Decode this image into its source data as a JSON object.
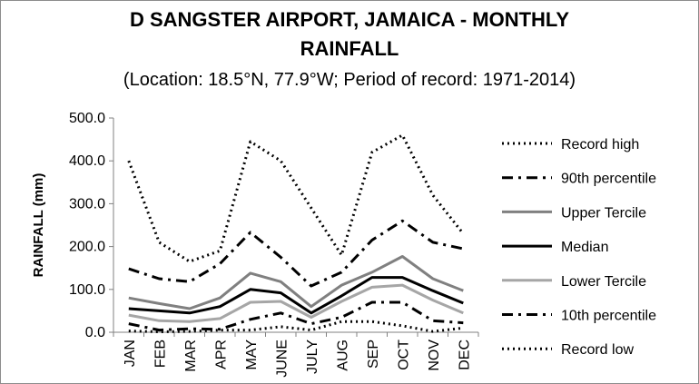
{
  "chart_data": {
    "type": "line",
    "title_line1": "D SANGSTER AIRPORT, JAMAICA - MONTHLY",
    "title_line2": "RAINFALL",
    "subtitle": "(Location: 18.5°N, 77.9°W; Period of record: 1971-2014)",
    "ylabel": "RAINFALL (mm)",
    "xlabel": "",
    "categories": [
      "JAN",
      "FEB",
      "MAR",
      "APR",
      "MAY",
      "JUNE",
      "JULY",
      "AUG",
      "SEP",
      "OCT",
      "NOV",
      "DEC"
    ],
    "ylim": [
      0,
      500
    ],
    "y_ticks": [
      "0.0",
      "100.0",
      "200.0",
      "300.0",
      "400.0",
      "500.0"
    ],
    "grid": false,
    "legend_position": "right",
    "series": [
      {
        "name": "Record high",
        "style": "dotted",
        "color": "#000000",
        "values": [
          400,
          210,
          165,
          190,
          445,
          400,
          290,
          180,
          420,
          460,
          320,
          230
        ]
      },
      {
        "name": "90th percentile",
        "style": "dashdot",
        "color": "#000000",
        "values": [
          148,
          125,
          118,
          160,
          233,
          175,
          108,
          140,
          215,
          260,
          210,
          195
        ]
      },
      {
        "name": "Upper Tercile",
        "style": "solid",
        "color": "#808080",
        "values": [
          80,
          67,
          55,
          80,
          138,
          118,
          60,
          110,
          140,
          177,
          125,
          97
        ]
      },
      {
        "name": "Median",
        "style": "solid",
        "color": "#000000",
        "values": [
          55,
          50,
          45,
          60,
          100,
          92,
          45,
          85,
          128,
          128,
          97,
          68
        ]
      },
      {
        "name": "Lower Tercile",
        "style": "solid",
        "color": "#a6a6a6",
        "values": [
          40,
          27,
          25,
          32,
          70,
          72,
          35,
          72,
          105,
          110,
          75,
          45
        ]
      },
      {
        "name": "10th percentile",
        "style": "dashdot",
        "color": "#000000",
        "values": [
          20,
          5,
          8,
          7,
          30,
          45,
          20,
          35,
          70,
          70,
          27,
          22
        ]
      },
      {
        "name": "Record low",
        "style": "dotted",
        "color": "#000000",
        "values": [
          3,
          1,
          2,
          5,
          5,
          13,
          5,
          25,
          25,
          15,
          2,
          10
        ]
      }
    ]
  }
}
